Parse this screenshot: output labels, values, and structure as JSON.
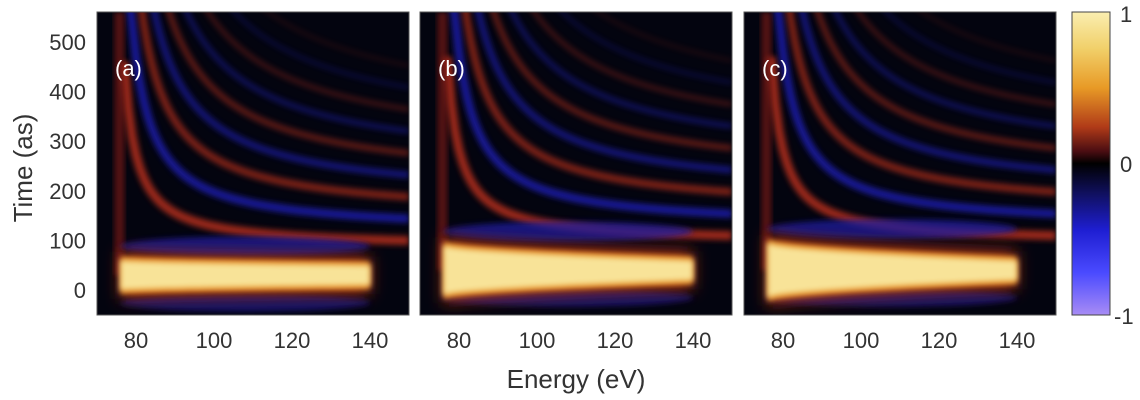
{
  "chart_data": {
    "type": "heatmap",
    "title": "",
    "xlabel": "Energy (eV)",
    "ylabel": "Time (as)",
    "xlim": [
      70,
      150
    ],
    "ylim": [
      -50,
      560
    ],
    "xticks": [
      80,
      100,
      120,
      140
    ],
    "yticks": [
      0,
      100,
      200,
      300,
      400,
      500
    ],
    "grid": false,
    "colormap": [
      "#000000",
      "#3a0a10",
      "#8a1e1e",
      "#c04018",
      "#e07818",
      "#f1b434",
      "#f8dc82",
      "#faeeb0"
    ],
    "colormap_negative": [
      "#000000",
      "#0a0a3a",
      "#1a1aa8",
      "#2a2ae8",
      "#5a5aff",
      "#a58cff"
    ],
    "colorbar": {
      "range": [
        -1,
        1
      ],
      "ticks": [
        "1",
        "0",
        "-1"
      ]
    },
    "panels": [
      {
        "label": "(a)",
        "main_band": {
          "center_time": 30,
          "half_width_time": [
            30,
            20
          ],
          "energy_range": [
            76,
            140
          ],
          "peak_value": 1
        },
        "fringes": "hyperbolic interference fringes above the main band",
        "vertical_edge_energy": 76
      },
      {
        "label": "(b)",
        "main_band": {
          "center_time": 40,
          "half_width_time": [
            50,
            20
          ],
          "energy_range": [
            76,
            140
          ],
          "peak_value": 1
        },
        "fringes": "hyperbolic interference fringes above the main band",
        "vertical_edge_energy": 76
      },
      {
        "label": "(c)",
        "main_band": {
          "center_time": 40,
          "half_width_time": [
            55,
            20
          ],
          "energy_range": [
            76,
            140
          ],
          "peak_value": 1
        },
        "fringes": "hyperbolic interference fringes above the main band",
        "vertical_edge_energy": 76
      }
    ]
  }
}
